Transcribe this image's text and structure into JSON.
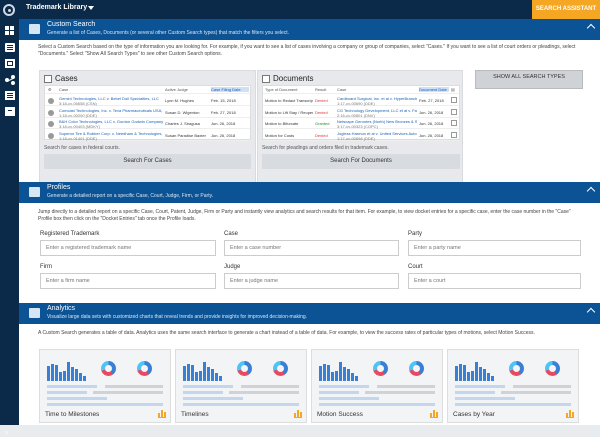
{
  "topbar": {
    "library": "Trademark Library",
    "assistant": "SEARCH ASSISTANT"
  },
  "custom": {
    "title": "Custom Search",
    "subtitle": "Generate a list of Cases, Documents (or several other Custom Search types) that match the filters you select.",
    "desc": "Select a Custom Search based on the type of information you are looking for. For example, if you want to see a list of cases involving a company or group of companies, select \"Cases.\" If you want to see a list of court orders or pleadings, select \"Documents.\" Select \"Show All Search Types\" to see other Custom Search options.",
    "cases": {
      "title": "Cases",
      "headers": [
        "Case",
        "Active Judge",
        "Case Filing Date"
      ],
      "rows": [
        {
          "case": "Gemini Technologies, LLC v. Bebel Doll Specialties, LLC",
          "num": "3:18-cv-05658 (CSN)",
          "judge": "Lynn M. Hughes",
          "date": "Feb. 15, 2018"
        },
        {
          "case": "Comcast Technologies, Inc. v. Teva Pharmaceuticals USA, Inc. et al",
          "num": "1:18-cv-00200 (DDE)",
          "judge": "Susan D. Wigenton",
          "date": "Feb. 27, 2018"
        },
        {
          "case": "B&H Color Technologies, LLC v. Gordon Godwin Company",
          "num": "3:18-cv-00403 (MDKY)",
          "judge": "Charles J. Siragusa",
          "date": "Jun. 26, 2018"
        },
        {
          "case": "Superior Tire & Rubber Corp. v. Needham & Technologies, LLC",
          "num": "1:18-cv-01401 (DDE)",
          "judge": "Susan Paradise Baxter",
          "date": "Jun. 26, 2018"
        }
      ],
      "note": "Search for cases in federal courts.",
      "button": "Search For Cases"
    },
    "documents": {
      "title": "Documents",
      "headers": [
        "Type of Document",
        "Result",
        "Case",
        "Document Date"
      ],
      "rows": [
        {
          "type": "Motion to Redact Transcript",
          "result": "Denied",
          "case": "Cardboard Surgical, Inc. et al v. HyperBranch Medical...",
          "num": "1:17-cv-00690 (DDE)",
          "date": "Feb. 27, 2018"
        },
        {
          "type": "Motion to Lift Stay / Reopen",
          "result": "Denied",
          "case": "CG Technology Development, LLC et al v. FanDuel, Inc.",
          "num": "2:16-cv-00801 (DNV)",
          "date": "Jun. 26, 2018"
        },
        {
          "type": "Motion to Bifurcate",
          "result": "Granted",
          "case": "Netscape Gerontes (North) New Bronzes & Studio C...",
          "num": "3:17-cv-00323 (COPC)",
          "date": "Jun. 26, 2018"
        },
        {
          "type": "Motion for Costs",
          "result": "Denied",
          "case": "Jogless Harmon et al v. United Services Automobile...",
          "num": "1:17-cv-00698 (DDE)",
          "date": "Jun. 26, 2018"
        }
      ],
      "note": "Search for pleadings and orders filed in trademark cases.",
      "button": "Search For Documents"
    },
    "show_all": "SHOW ALL SEARCH TYPES"
  },
  "profiles": {
    "title": "Profiles",
    "subtitle": "Generate a detailed report on a specific Case, Court, Judge, Firm, or Party.",
    "desc": "Jump directly to a detailed report on a specific Case, Court, Patent, Judge, Firm or Party and instantly view analytics and search results for that item. For example, to view docket entries for a specific case, enter the case number in the \"Case\" Profile box then click on the \"Docket Entries\" tab once the Profile loads.",
    "fields": [
      {
        "label": "Registered Trademark",
        "placeholder": "Enter a registered trademark name"
      },
      {
        "label": "Case",
        "placeholder": "Enter a case number"
      },
      {
        "label": "Party",
        "placeholder": "Enter a party name"
      },
      {
        "label": "Firm",
        "placeholder": "Enter a firm name"
      },
      {
        "label": "Judge",
        "placeholder": "Enter a judge name"
      },
      {
        "label": "Court",
        "placeholder": "Enter a court"
      }
    ]
  },
  "analytics": {
    "title": "Analytics",
    "subtitle": "Visualize large data sets with customized charts that reveal trends and provide insights for improved decision-making.",
    "desc": "A Custom Search generates a table of data. Analytics uses the same search interface to generate a chart instead of a table of data. For example, to view the success rates of particular types of motions, select Motion Success.",
    "cards": [
      "Time to Milestones",
      "Timelines",
      "Motion Success",
      "Cases by Year"
    ]
  },
  "colors": {
    "navy": "#0b2a4a",
    "blue": "#0b5394",
    "orange": "#f5a623",
    "link": "#1a5fb4",
    "denied": "#dd3333",
    "granted": "#2a8a2a"
  }
}
